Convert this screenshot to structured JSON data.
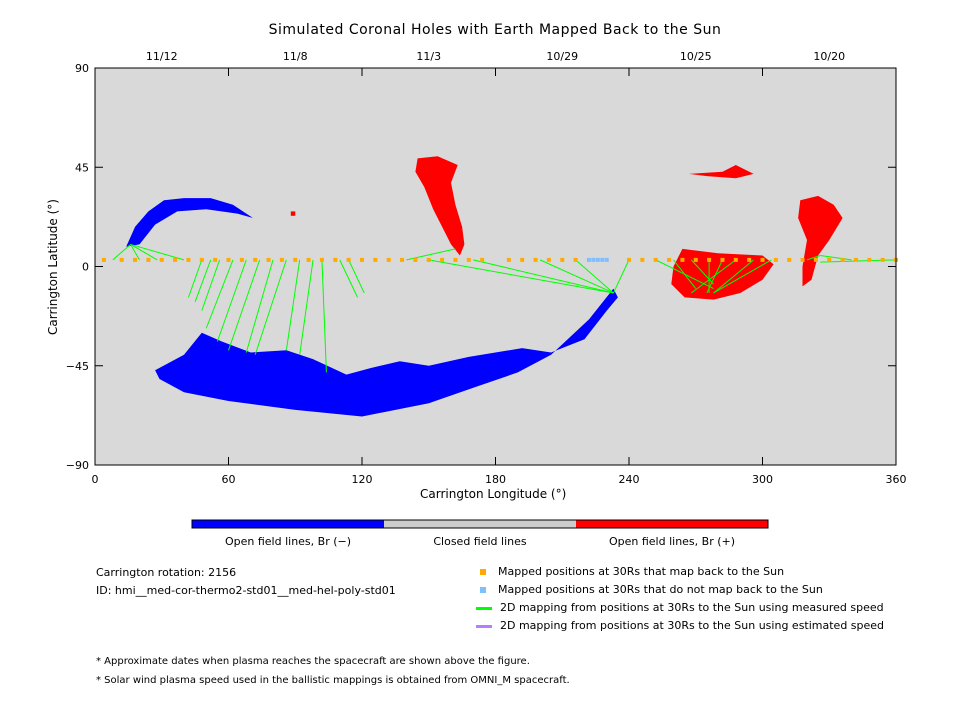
{
  "chart_data": {
    "type": "scatter",
    "title": "Simulated Coronal Holes with Earth Mapped Back to the Sun",
    "xlabel": "Carrington Longitude (°)",
    "ylabel": "Carrington Latitude (°)",
    "xlim": [
      0,
      360
    ],
    "ylim": [
      -90,
      90
    ],
    "x_ticks": [
      0,
      60,
      120,
      180,
      240,
      300,
      360
    ],
    "y_ticks": [
      -90,
      -45,
      0,
      45,
      90
    ],
    "top_date_ticks": [
      {
        "label": "11/12",
        "x": 30
      },
      {
        "label": "11/8",
        "x": 90
      },
      {
        "label": "11/3",
        "x": 150
      },
      {
        "label": "10/29",
        "x": 210
      },
      {
        "label": "10/25",
        "x": 270
      },
      {
        "label": "10/20",
        "x": 330
      }
    ],
    "colors": {
      "background": "#d9d9d9",
      "open_negative": "#0000ff",
      "open_positive": "#ff0000",
      "mapped": "#ffaa00",
      "not_mapped": "#7fbfff",
      "measured_line": "#00ff00",
      "estimated_line": "#b47fff"
    },
    "coronal_holes": [
      {
        "polarity": "negative",
        "polygon": [
          [
            27,
            -47
          ],
          [
            40,
            -40
          ],
          [
            48,
            -30
          ],
          [
            57,
            -34
          ],
          [
            70,
            -39
          ],
          [
            86,
            -38
          ],
          [
            98,
            -42
          ],
          [
            113,
            -49
          ],
          [
            124,
            -46
          ],
          [
            137,
            -43
          ],
          [
            150,
            -45
          ],
          [
            168,
            -41
          ],
          [
            192,
            -37
          ],
          [
            205,
            -39
          ],
          [
            220,
            -33
          ],
          [
            230,
            -20
          ],
          [
            235,
            -14
          ],
          [
            233,
            -10
          ],
          [
            222,
            -24
          ],
          [
            205,
            -40
          ],
          [
            190,
            -48
          ],
          [
            170,
            -55
          ],
          [
            150,
            -62
          ],
          [
            120,
            -68
          ],
          [
            90,
            -65
          ],
          [
            60,
            -61
          ],
          [
            40,
            -57
          ],
          [
            29,
            -51
          ]
        ]
      },
      {
        "polarity": "negative",
        "polygon": [
          [
            14,
            9
          ],
          [
            18,
            18
          ],
          [
            24,
            25
          ],
          [
            31,
            30
          ],
          [
            40,
            31
          ],
          [
            52,
            31
          ],
          [
            62,
            28
          ],
          [
            71,
            22
          ],
          [
            64,
            24
          ],
          [
            50,
            26
          ],
          [
            37,
            25
          ],
          [
            27,
            19
          ],
          [
            20,
            10
          ]
        ]
      },
      {
        "polarity": "positive",
        "polygon": [
          [
            145,
            49
          ],
          [
            154,
            50
          ],
          [
            163,
            46
          ],
          [
            160,
            38
          ],
          [
            162,
            28
          ],
          [
            165,
            18
          ],
          [
            166,
            10
          ],
          [
            164,
            5
          ],
          [
            160,
            10
          ],
          [
            156,
            18
          ],
          [
            152,
            26
          ],
          [
            148,
            36
          ],
          [
            144,
            43
          ]
        ]
      },
      {
        "polarity": "positive",
        "polygon": [
          [
            264,
            8
          ],
          [
            280,
            6
          ],
          [
            300,
            5
          ],
          [
            305,
            1
          ],
          [
            300,
            -6
          ],
          [
            290,
            -12
          ],
          [
            278,
            -15
          ],
          [
            265,
            -14
          ],
          [
            259,
            -8
          ],
          [
            260,
            0
          ]
        ]
      },
      {
        "polarity": "positive",
        "polygon": [
          [
            317,
            30
          ],
          [
            325,
            32
          ],
          [
            332,
            28
          ],
          [
            336,
            22
          ],
          [
            330,
            12
          ],
          [
            325,
            5
          ],
          [
            322,
            -6
          ],
          [
            318,
            -9
          ],
          [
            318,
            0
          ],
          [
            320,
            12
          ],
          [
            316,
            22
          ]
        ]
      },
      {
        "polarity": "positive",
        "polygon": [
          [
            267,
            42
          ],
          [
            282,
            43
          ],
          [
            288,
            46
          ],
          [
            296,
            42
          ],
          [
            288,
            40
          ],
          [
            275,
            41
          ]
        ]
      },
      {
        "polarity": "positive",
        "polygon": [
          [
            88,
            25
          ],
          [
            90,
            25
          ],
          [
            90,
            23
          ],
          [
            88,
            23
          ]
        ]
      }
    ],
    "mapped_x": [
      4,
      12,
      18,
      24,
      30,
      36,
      42,
      48,
      54,
      60,
      66,
      72,
      78,
      84,
      90,
      96,
      102,
      108,
      114,
      120,
      126,
      132,
      138,
      144,
      150,
      156,
      162,
      168,
      174,
      186,
      192,
      198,
      204,
      210,
      216,
      240,
      246,
      252,
      258,
      264,
      270,
      276,
      282,
      288,
      294,
      300,
      306,
      312,
      318,
      324,
      330,
      336,
      342,
      348,
      354,
      360
    ],
    "not_mapped_x": [
      222,
      224,
      226,
      228,
      230
    ],
    "mapped_lat": 3,
    "footpoints": [
      {
        "from": [
          8,
          3
        ],
        "to": [
          16,
          10
        ]
      },
      {
        "from": [
          20,
          3
        ],
        "to": [
          16,
          10
        ]
      },
      {
        "from": [
          28,
          3
        ],
        "to": [
          16,
          10
        ]
      },
      {
        "from": [
          40,
          3
        ],
        "to": [
          16,
          10
        ]
      },
      {
        "from": [
          48,
          3
        ],
        "to": [
          42,
          -14
        ]
      },
      {
        "from": [
          52,
          3
        ],
        "to": [
          45,
          -16
        ]
      },
      {
        "from": [
          56,
          3
        ],
        "to": [
          48,
          -20
        ]
      },
      {
        "from": [
          62,
          3
        ],
        "to": [
          50,
          -28
        ]
      },
      {
        "from": [
          68,
          3
        ],
        "to": [
          55,
          -34
        ]
      },
      {
        "from": [
          74,
          3
        ],
        "to": [
          60,
          -38
        ]
      },
      {
        "from": [
          80,
          3
        ],
        "to": [
          68,
          -39
        ]
      },
      {
        "from": [
          86,
          3
        ],
        "to": [
          72,
          -40
        ]
      },
      {
        "from": [
          92,
          3
        ],
        "to": [
          86,
          -38
        ]
      },
      {
        "from": [
          98,
          3
        ],
        "to": [
          92,
          -40
        ]
      },
      {
        "from": [
          102,
          3
        ],
        "to": [
          104,
          -48
        ]
      },
      {
        "from": [
          110,
          3
        ],
        "to": [
          118,
          -14
        ]
      },
      {
        "from": [
          114,
          3
        ],
        "to": [
          121,
          -12
        ]
      },
      {
        "from": [
          140,
          3
        ],
        "to": [
          162,
          8
        ]
      },
      {
        "from": [
          150,
          3
        ],
        "to": [
          233,
          -12
        ]
      },
      {
        "from": [
          170,
          3
        ],
        "to": [
          233,
          -12
        ]
      },
      {
        "from": [
          200,
          3
        ],
        "to": [
          233,
          -12
        ]
      },
      {
        "from": [
          216,
          3
        ],
        "to": [
          233,
          -12
        ]
      },
      {
        "from": [
          240,
          3
        ],
        "to": [
          233,
          -12
        ]
      },
      {
        "from": [
          252,
          3
        ],
        "to": [
          278,
          -10
        ]
      },
      {
        "from": [
          260,
          3
        ],
        "to": [
          270,
          -10
        ]
      },
      {
        "from": [
          268,
          3
        ],
        "to": [
          278,
          -8
        ]
      },
      {
        "from": [
          276,
          3
        ],
        "to": [
          276,
          -12
        ]
      },
      {
        "from": [
          282,
          3
        ],
        "to": [
          275,
          -12
        ]
      },
      {
        "from": [
          288,
          3
        ],
        "to": [
          268,
          -12
        ]
      },
      {
        "from": [
          296,
          3
        ],
        "to": [
          278,
          -12
        ]
      },
      {
        "from": [
          304,
          3
        ],
        "to": [
          278,
          -12
        ]
      },
      {
        "from": [
          320,
          3
        ],
        "to": [
          326,
          5
        ]
      },
      {
        "from": [
          340,
          3
        ],
        "to": [
          326,
          5
        ]
      },
      {
        "from": [
          360,
          3
        ],
        "to": [
          326,
          2
        ]
      }
    ],
    "colorbar": [
      {
        "label": "Open field lines, Br (−)",
        "color": "#0000ff"
      },
      {
        "label": "Closed field lines",
        "color": "#cccccc"
      },
      {
        "label": "Open field lines, Br (+)",
        "color": "#ff0000"
      }
    ]
  },
  "info": {
    "rotation": "Carrington rotation: 2156",
    "id": "ID: hmi__med-cor-thermo2-std01__med-hel-poly-std01"
  },
  "legend": [
    {
      "label": "Mapped positions at 30Rs that map back to the Sun",
      "kind": "square",
      "color": "#ffaa00"
    },
    {
      "label": "Mapped positions at 30Rs that do not map back to the Sun",
      "kind": "square",
      "color": "#7fbfff"
    },
    {
      "label": "2D mapping from positions at 30Rs to the Sun using measured speed",
      "kind": "line",
      "color": "#00ff00"
    },
    {
      "label": "2D mapping from positions at 30Rs to the Sun using estimated speed",
      "kind": "line",
      "color": "#b47fff"
    }
  ],
  "notes": [
    "* Approximate dates when plasma reaches the spacecraft are shown above the figure.",
    "* Solar wind plasma speed used in the ballistic mappings is obtained from OMNI_M spacecraft."
  ]
}
